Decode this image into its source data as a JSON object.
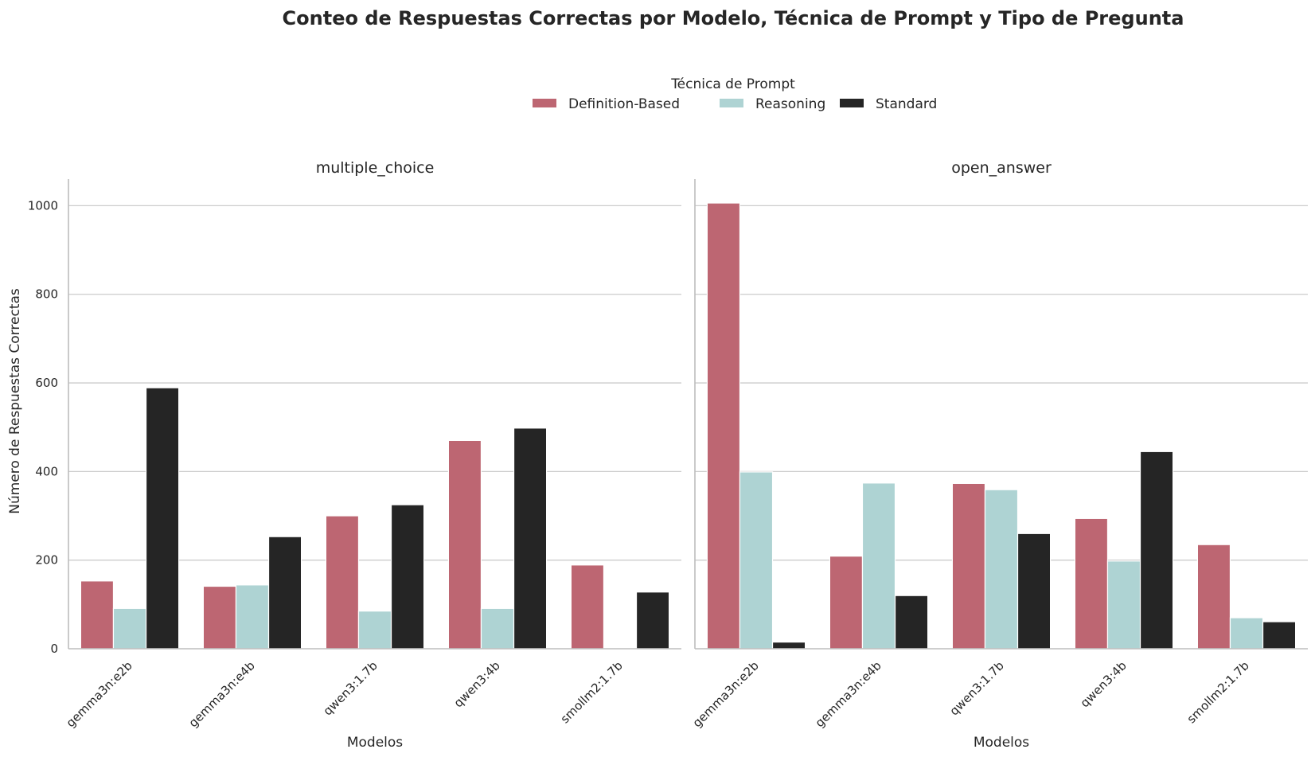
{
  "chart_data": {
    "type": "bar",
    "title": "Conteo de Respuestas Correctas por Modelo, Técnica de Prompt y Tipo de Pregunta",
    "legend": {
      "title": "Técnica de Prompt",
      "placement": "top-center",
      "entries": [
        "Definition-Based",
        "Reasoning",
        "Standard"
      ]
    },
    "colors": {
      "Definition-Based": "#bd6672",
      "Reasoning": "#aed3d3",
      "Standard": "#252525"
    },
    "ylabel": "Número de Respuestas Correctas",
    "xlabel": "Modelos",
    "ylim": [
      0,
      1060
    ],
    "yticks": [
      0,
      200,
      400,
      600,
      800,
      1000
    ],
    "grid": "horizontal",
    "categories": [
      "gemma3n:e2b",
      "gemma3n:e4b",
      "qwen3:1.7b",
      "qwen3:4b",
      "smollm2:1.7b"
    ],
    "panels": [
      {
        "title": "multiple_choice",
        "series": [
          {
            "name": "Definition-Based",
            "values": [
              153,
              141,
              300,
              470,
              189
            ]
          },
          {
            "name": "Reasoning",
            "values": [
              91,
              144,
              85,
              91,
              0
            ]
          },
          {
            "name": "Standard",
            "values": [
              589,
              253,
              325,
              498,
              128
            ]
          }
        ]
      },
      {
        "title": "open_answer",
        "series": [
          {
            "name": "Definition-Based",
            "values": [
              1006,
              209,
              373,
              294,
              235
            ]
          },
          {
            "name": "Reasoning",
            "values": [
              399,
              374,
              359,
              198,
              70
            ]
          },
          {
            "name": "Standard",
            "values": [
              15,
              120,
              260,
              445,
              61
            ]
          }
        ]
      }
    ]
  }
}
